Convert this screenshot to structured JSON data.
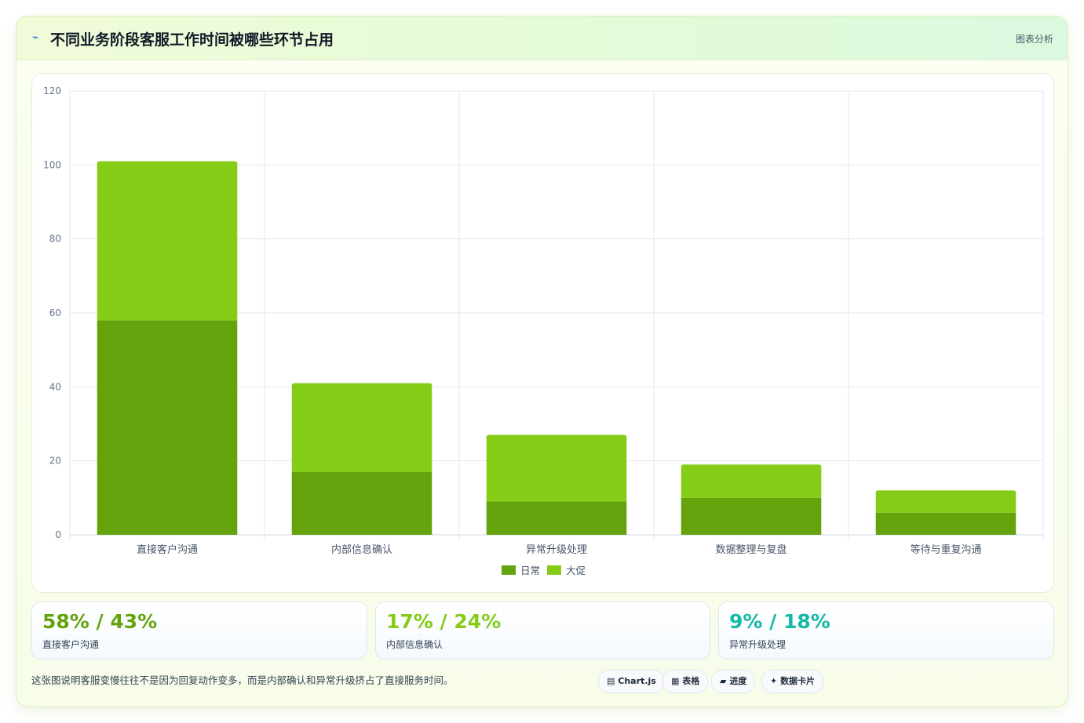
{
  "header": {
    "icon": "sparkle-icon",
    "title": "不同业务阶段客服工作时间被哪些环节占用",
    "tag": "图表分析"
  },
  "chart_data": {
    "type": "bar",
    "stacked": true,
    "categories": [
      "直接客户沟通",
      "内部信息确认",
      "异常升级处理",
      "数据整理与复盘",
      "等待与重复沟通"
    ],
    "series": [
      {
        "name": "日常",
        "values": [
          58,
          17,
          9,
          10,
          6
        ],
        "color": "#65a30d"
      },
      {
        "name": "大促",
        "values": [
          43,
          24,
          18,
          9,
          6
        ],
        "color": "#84cc16"
      }
    ],
    "ylim": [
      0,
      120
    ],
    "yticks": [
      0,
      20,
      40,
      60,
      80,
      100,
      120
    ],
    "grid": true,
    "legend": "bottom"
  },
  "stats": [
    {
      "value": "58% / 43%",
      "label": "直接客户沟通",
      "color": "#65a30d"
    },
    {
      "value": "17% / 24%",
      "label": "内部信息确认",
      "color": "#84cc16"
    },
    {
      "value": "9% / 18%",
      "label": "异常升级处理",
      "color": "#14b8a6"
    }
  ],
  "footnote": "这张图说明客服变慢往往不是因为回复动作变多，而是内部确认和异常升级挤占了直接服务时间。",
  "chips": [
    {
      "icon": "chart-icon",
      "glyph": "▤",
      "label": "Chart.js"
    },
    {
      "icon": "table-icon",
      "glyph": "▦",
      "label": "表格"
    },
    {
      "icon": "progress-icon",
      "glyph": "▰",
      "label": "进度"
    },
    {
      "icon": "card-icon",
      "glyph": "✦",
      "label": "数据卡片"
    }
  ]
}
